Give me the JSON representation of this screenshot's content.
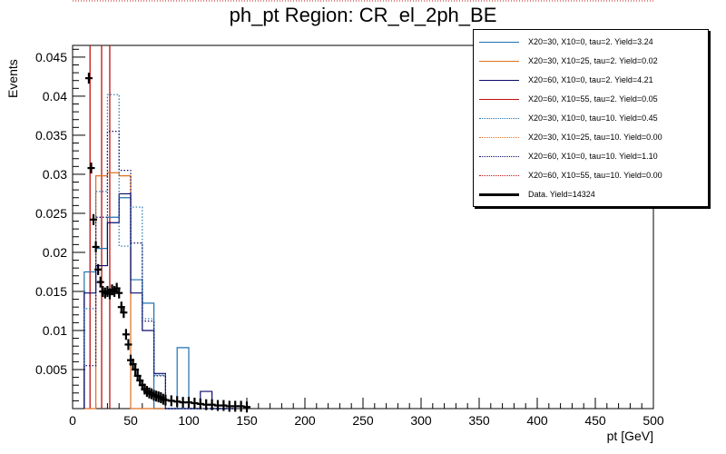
{
  "chart_data": {
    "type": "bar",
    "title": "ph_pt Region: CR_el_2ph_BE",
    "xlabel": "pt [GeV]",
    "ylabel": "Events",
    "xlim": [
      0,
      500
    ],
    "ylim": [
      0,
      0.0465
    ],
    "xticks": [
      "0",
      "50",
      "100",
      "150",
      "200",
      "250",
      "300",
      "350",
      "400",
      "450",
      "500"
    ],
    "yticks": [
      "0.005",
      "0.01",
      "0.015",
      "0.02",
      "0.025",
      "0.03",
      "0.035",
      "0.04",
      "0.045"
    ],
    "bin_width": 10,
    "series": [
      {
        "name": "X20=30, X10=0, tau=2. Yield=3.24",
        "color": "#2070b0",
        "style": "solid",
        "values": [
          0.0175,
          0.0205,
          0.0245,
          0.027,
          0.0165,
          0.0135,
          0.0,
          0.0,
          0.0078,
          0.0,
          0.0,
          0.0,
          0.0
        ]
      },
      {
        "name": "X20=30, X10=25, tau=2. Yield=0.02",
        "color": "#e07020",
        "style": "solid",
        "values": [
          0.0,
          0.0298,
          0.0302,
          0.0298,
          0.0,
          0.0,
          0.0,
          0.0,
          0.0,
          0.0,
          0.0,
          0.0,
          0.0
        ]
      },
      {
        "name": "X20=60, X10=0, tau=2. Yield=4.21",
        "color": "#0a0a6a",
        "style": "solid",
        "values": [
          0.0148,
          0.0183,
          0.0238,
          0.0275,
          0.0148,
          0.01,
          0.0045,
          0.0,
          0.0,
          0.0,
          0.0022,
          0.0,
          0.0
        ]
      },
      {
        "name": "X20=60, X10=55, tau=2. Yield=0.05",
        "color": "#c01010",
        "style": "solid",
        "values": []
      },
      {
        "name": "X20=30, X10=0, tau=10. Yield=0.45",
        "color": "#2070b0",
        "style": "dotted",
        "values": [
          0.0128,
          0.0278,
          0.0402,
          0.0208,
          0.0258,
          0.0115,
          0.0043,
          0.0,
          0.0,
          0.0,
          0.0,
          0.0,
          0.0
        ]
      },
      {
        "name": "X20=30, X10=25, tau=10. Yield=0.00",
        "color": "#e07020",
        "style": "dotted",
        "values": []
      },
      {
        "name": "X20=60, X10=0, tau=10. Yield=1.10",
        "color": "#0a0a6a",
        "style": "dotted",
        "values": [
          0.0055,
          0.0245,
          0.0355,
          0.0305,
          0.0212,
          0.0112,
          0.0042,
          0.0,
          0.0,
          0.0,
          0.0,
          0.0,
          0.0
        ]
      },
      {
        "name": "X20=60, X10=55, tau=10. Yield=0.00",
        "color": "#c01010",
        "style": "dotted",
        "values": []
      },
      {
        "name": "Data. Yield=14324",
        "color": "#000000",
        "style": "data",
        "x": [
          14,
          16,
          18,
          20,
          22,
          24,
          26,
          28,
          30,
          32,
          34,
          36,
          38,
          40,
          42,
          44,
          46,
          48,
          50,
          52,
          54,
          56,
          58,
          60,
          62,
          64,
          66,
          68,
          70,
          72,
          74,
          76,
          78,
          80,
          85,
          90,
          95,
          100,
          105,
          110,
          115,
          120,
          125,
          130,
          135,
          140,
          145,
          150
        ],
        "values": [
          0.0423,
          0.0308,
          0.0242,
          0.0207,
          0.0178,
          0.0162,
          0.015,
          0.0148,
          0.015,
          0.0147,
          0.0152,
          0.015,
          0.0154,
          0.0148,
          0.013,
          0.0123,
          0.0095,
          0.0082,
          0.0062,
          0.0057,
          0.005,
          0.0042,
          0.0036,
          0.003,
          0.0025,
          0.0022,
          0.002,
          0.0019,
          0.0017,
          0.0016,
          0.0015,
          0.0014,
          0.0012,
          0.0011,
          0.001,
          0.0009,
          0.0008,
          0.0008,
          0.0007,
          0.0006,
          0.0005,
          0.0005,
          0.0004,
          0.0004,
          0.0003,
          0.0003,
          0.0003,
          0.0002
        ]
      }
    ],
    "red_spikes_x": [
      15,
      25,
      32
    ],
    "legend_position": "top-right",
    "grid": false
  }
}
